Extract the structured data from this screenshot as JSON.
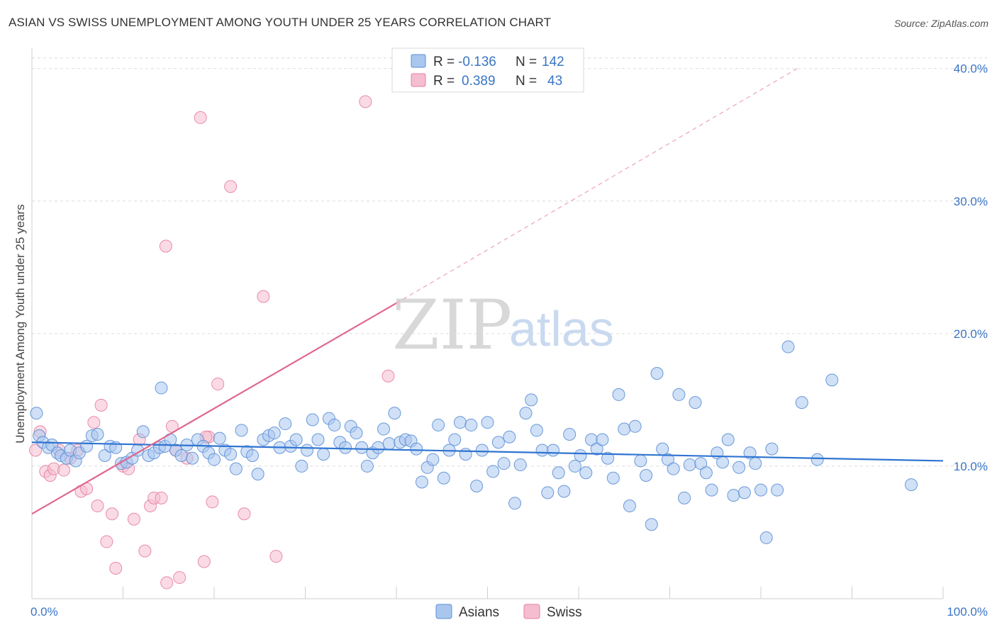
{
  "title": "ASIAN VS SWISS UNEMPLOYMENT AMONG YOUTH UNDER 25 YEARS CORRELATION CHART",
  "source": "Source: ZipAtlas.com",
  "watermark": {
    "zip": "ZIP",
    "atlas": "atlas"
  },
  "chart_data": {
    "type": "scatter",
    "xlabel": "",
    "ylabel": "Unemployment Among Youth under 25 years",
    "xlim": [
      0,
      100
    ],
    "ylim": [
      0,
      41
    ],
    "x_ticks": [
      "0.0%",
      "100.0%"
    ],
    "y_ticks": [
      {
        "value": 10,
        "label": "10.0%"
      },
      {
        "value": 20,
        "label": "20.0%"
      },
      {
        "value": 30,
        "label": "30.0%"
      },
      {
        "value": 40,
        "label": "40.0%"
      }
    ],
    "legend_stats": [
      {
        "r_label": "R =",
        "r": "-0.136",
        "n_label": "N =",
        "n": "142"
      },
      {
        "r_label": "R =",
        "r": "0.389",
        "n_label": "N =",
        "n": "43"
      }
    ],
    "legend": [
      "Asians",
      "Swiss"
    ],
    "colors": {
      "asians": "#5b8fd6",
      "asians_fill": "#a9c7ee",
      "swiss": "#e57fa0",
      "swiss_fill": "#f5bdd0",
      "asians_line": "#2f74d0",
      "swiss_line": "#e0678f"
    },
    "trendlines": [
      {
        "series": "Asians",
        "x": [
          0,
          100
        ],
        "y": [
          11.8,
          10.4
        ]
      },
      {
        "series": "Swiss",
        "x": [
          0,
          40
        ],
        "y": [
          6.4,
          22.3
        ],
        "dashed_extension_to": [
          84,
          40
        ]
      }
    ],
    "series": [
      {
        "name": "Asians",
        "points": [
          [
            0.5,
            14
          ],
          [
            0.8,
            12.3
          ],
          [
            1.2,
            11.8
          ],
          [
            1.8,
            11.4
          ],
          [
            2.2,
            11.6
          ],
          [
            2.8,
            11
          ],
          [
            3.2,
            10.8
          ],
          [
            3.8,
            10.6
          ],
          [
            4.2,
            11.2
          ],
          [
            4.8,
            10.4
          ],
          [
            5.2,
            11
          ],
          [
            6,
            11.5
          ],
          [
            6.6,
            12.3
          ],
          [
            7.2,
            12.4
          ],
          [
            8,
            10.8
          ],
          [
            8.6,
            11.5
          ],
          [
            9.2,
            11.4
          ],
          [
            9.8,
            10.2
          ],
          [
            10.4,
            10.3
          ],
          [
            11,
            10.6
          ],
          [
            11.6,
            11.2
          ],
          [
            12.2,
            12.6
          ],
          [
            12.8,
            10.8
          ],
          [
            13.4,
            11
          ],
          [
            14,
            11.4
          ],
          [
            14.6,
            11.5
          ],
          [
            14.2,
            15.9
          ],
          [
            15.2,
            12
          ],
          [
            15.8,
            11.2
          ],
          [
            16.4,
            10.8
          ],
          [
            17,
            11.6
          ],
          [
            17.6,
            10.6
          ],
          [
            18.2,
            12
          ],
          [
            18.8,
            11.5
          ],
          [
            19.4,
            11
          ],
          [
            20,
            10.5
          ],
          [
            20.6,
            12.1
          ],
          [
            21.2,
            11.2
          ],
          [
            21.8,
            10.9
          ],
          [
            22.4,
            9.8
          ],
          [
            23,
            12.7
          ],
          [
            23.6,
            11.1
          ],
          [
            24.2,
            10.8
          ],
          [
            24.8,
            9.4
          ],
          [
            25.4,
            12
          ],
          [
            26,
            12.3
          ],
          [
            26.6,
            12.5
          ],
          [
            27.2,
            11.4
          ],
          [
            27.8,
            13.2
          ],
          [
            28.4,
            11.5
          ],
          [
            29,
            12
          ],
          [
            29.6,
            10
          ],
          [
            30.2,
            11.2
          ],
          [
            30.8,
            13.5
          ],
          [
            31.4,
            12
          ],
          [
            32,
            10.9
          ],
          [
            32.6,
            13.6
          ],
          [
            33.2,
            13.1
          ],
          [
            33.8,
            11.8
          ],
          [
            34.4,
            11.4
          ],
          [
            35,
            13
          ],
          [
            35.6,
            12.5
          ],
          [
            36.2,
            11.4
          ],
          [
            36.8,
            10
          ],
          [
            37.4,
            11
          ],
          [
            38,
            11.4
          ],
          [
            38.6,
            12.8
          ],
          [
            39.2,
            11.7
          ],
          [
            39.8,
            14
          ],
          [
            40.4,
            11.8
          ],
          [
            41,
            12
          ],
          [
            41.6,
            11.9
          ],
          [
            42.2,
            11.3
          ],
          [
            42.8,
            8.8
          ],
          [
            43.4,
            9.9
          ],
          [
            44,
            10.5
          ],
          [
            44.6,
            13.1
          ],
          [
            45.2,
            9.1
          ],
          [
            45.8,
            11.2
          ],
          [
            46.4,
            12
          ],
          [
            47,
            13.3
          ],
          [
            47.6,
            10.9
          ],
          [
            48.2,
            13.1
          ],
          [
            48.8,
            8.5
          ],
          [
            49.4,
            11.2
          ],
          [
            50,
            13.3
          ],
          [
            50.6,
            9.6
          ],
          [
            51.2,
            11.8
          ],
          [
            51.8,
            10.2
          ],
          [
            52.4,
            12.2
          ],
          [
            53,
            7.2
          ],
          [
            53.6,
            10.1
          ],
          [
            54.2,
            14
          ],
          [
            54.8,
            15
          ],
          [
            55.4,
            12.7
          ],
          [
            56,
            11.2
          ],
          [
            56.6,
            8
          ],
          [
            57.2,
            11.2
          ],
          [
            57.8,
            9.5
          ],
          [
            58.4,
            8.1
          ],
          [
            59,
            12.4
          ],
          [
            59.6,
            10
          ],
          [
            60.2,
            10.8
          ],
          [
            60.8,
            9.5
          ],
          [
            61.4,
            12
          ],
          [
            62,
            11.3
          ],
          [
            62.6,
            12
          ],
          [
            63.2,
            10.6
          ],
          [
            63.8,
            9.1
          ],
          [
            64.4,
            15.4
          ],
          [
            65,
            12.8
          ],
          [
            65.6,
            7
          ],
          [
            66.2,
            13
          ],
          [
            66.8,
            10.4
          ],
          [
            67.4,
            9.3
          ],
          [
            68,
            5.6
          ],
          [
            68.6,
            17
          ],
          [
            69.2,
            11.3
          ],
          [
            69.8,
            10.5
          ],
          [
            70.4,
            9.8
          ],
          [
            71,
            15.4
          ],
          [
            71.6,
            7.6
          ],
          [
            72.2,
            10.1
          ],
          [
            72.8,
            14.8
          ],
          [
            73.4,
            10.2
          ],
          [
            74,
            9.5
          ],
          [
            74.6,
            8.2
          ],
          [
            75.2,
            11
          ],
          [
            75.8,
            10.3
          ],
          [
            76.4,
            12
          ],
          [
            77,
            7.8
          ],
          [
            77.6,
            9.9
          ],
          [
            78.2,
            8
          ],
          [
            78.8,
            11
          ],
          [
            79.4,
            10.2
          ],
          [
            80,
            8.2
          ],
          [
            80.6,
            4.6
          ],
          [
            81.2,
            11.3
          ],
          [
            81.8,
            8.2
          ],
          [
            83,
            19
          ],
          [
            84.5,
            14.8
          ],
          [
            86.2,
            10.5
          ],
          [
            87.8,
            16.5
          ],
          [
            96.5,
            8.6
          ]
        ]
      },
      {
        "name": "Swiss",
        "points": [
          [
            0.4,
            11.2
          ],
          [
            0.9,
            12.6
          ],
          [
            1.5,
            9.6
          ],
          [
            2,
            9.3
          ],
          [
            2.4,
            9.8
          ],
          [
            3,
            11.2
          ],
          [
            3.5,
            9.7
          ],
          [
            4.2,
            10.6
          ],
          [
            5,
            11.2
          ],
          [
            5.4,
            8.1
          ],
          [
            6,
            8.3
          ],
          [
            6.8,
            13.3
          ],
          [
            7.2,
            7
          ],
          [
            7.6,
            14.6
          ],
          [
            8.2,
            4.3
          ],
          [
            8.8,
            6.4
          ],
          [
            9.2,
            2.3
          ],
          [
            10,
            10
          ],
          [
            10.6,
            9.8
          ],
          [
            11.2,
            6
          ],
          [
            11.8,
            12
          ],
          [
            12.4,
            3.6
          ],
          [
            13,
            7
          ],
          [
            13.4,
            7.6
          ],
          [
            14.2,
            7.6
          ],
          [
            14.8,
            1.2
          ],
          [
            15.4,
            13
          ],
          [
            15.8,
            11.2
          ],
          [
            16.2,
            1.6
          ],
          [
            17,
            10.6
          ],
          [
            18.5,
            36.3
          ],
          [
            18.9,
            2.8
          ],
          [
            19.4,
            12.2
          ],
          [
            19.8,
            7.3
          ],
          [
            20.4,
            16.2
          ],
          [
            21.8,
            31.1
          ],
          [
            23.3,
            6.4
          ],
          [
            25.4,
            22.8
          ],
          [
            26.8,
            3.2
          ],
          [
            36.6,
            37.5
          ],
          [
            39.1,
            16.8
          ],
          [
            14.7,
            26.6
          ],
          [
            19.1,
            12.2
          ]
        ]
      }
    ]
  }
}
